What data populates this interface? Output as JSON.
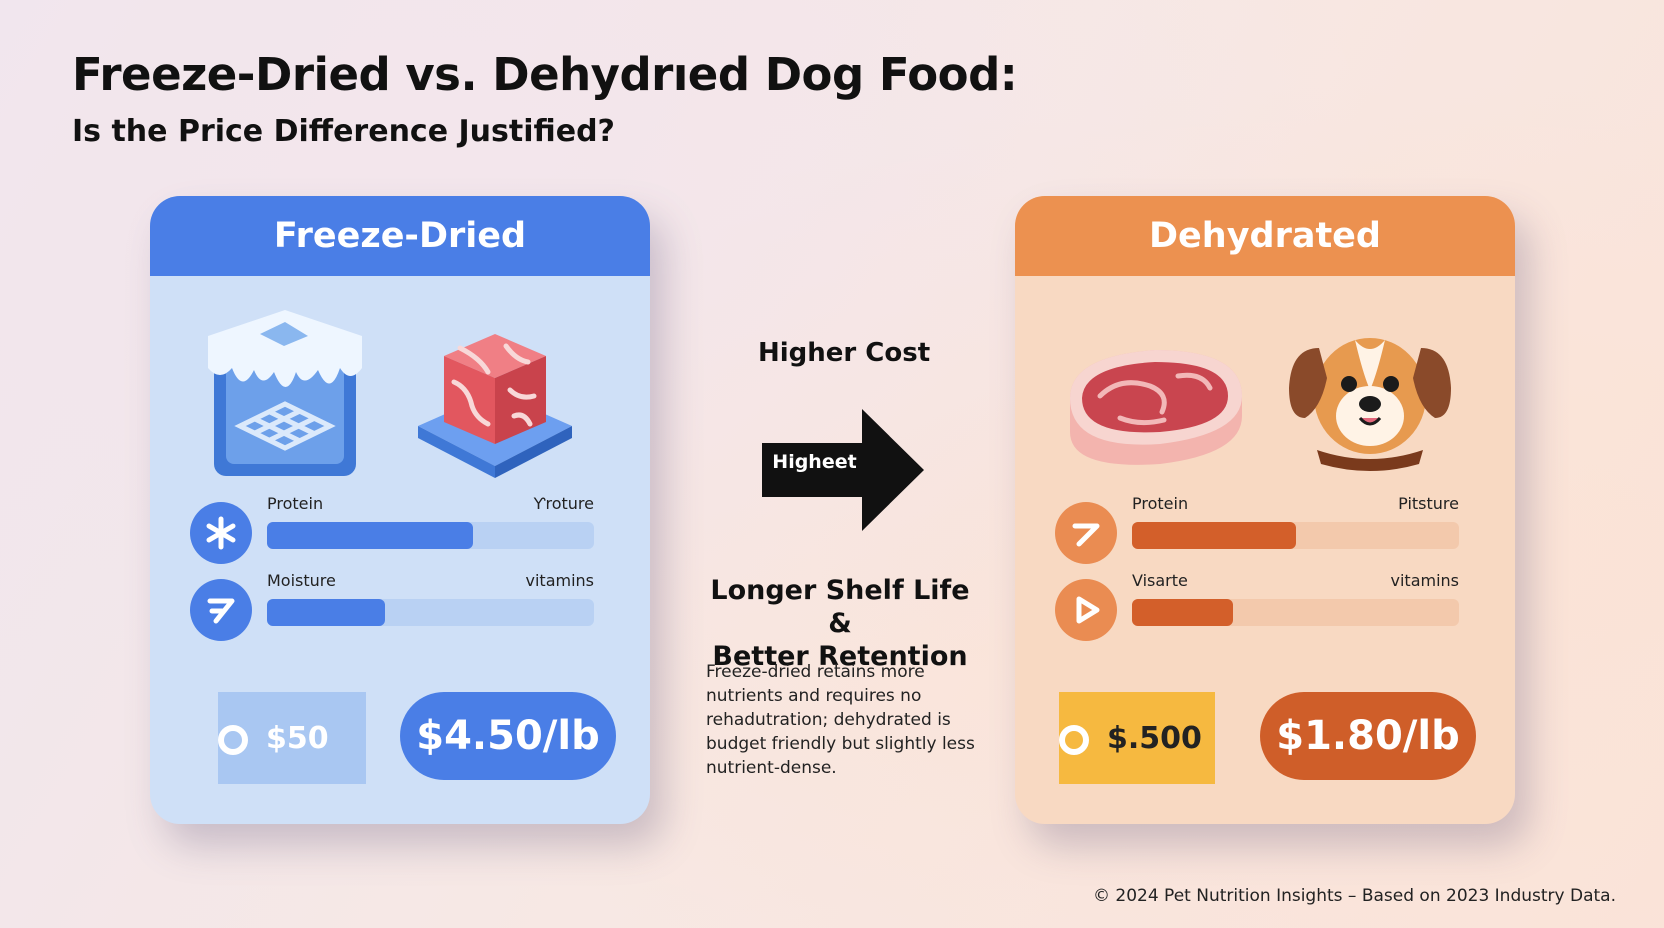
{
  "header": {
    "title": "Freeze-Dried vs. Dehydrıed Dog Food:",
    "subtitle": "Is the Price Difference Justified?"
  },
  "cards": [
    {
      "title": "Freeze-Dried",
      "accent": "#4a7ee6",
      "icons": [
        "frozen-ice-cube-icon",
        "raw-meat-cube-icon"
      ],
      "metrics": [
        {
          "label": "Protein",
          "right_label": "Ƴroture",
          "level_percent": 63,
          "icon": "snowflake-icon"
        },
        {
          "label": "Moisture",
          "right_label": "vitamins",
          "level_percent": 36,
          "icon": "arrow-icon"
        }
      ],
      "stamp_price": "$50",
      "price": "$4.50/lb"
    },
    {
      "title": "Dehydrated",
      "accent": "#ec9150",
      "icons": [
        "steak-icon",
        "dog-face-icon"
      ],
      "metrics": [
        {
          "label": "Protein",
          "right_label": "Pitsture",
          "level_percent": 50,
          "icon": "arrow-icon"
        },
        {
          "label": "Visarte",
          "right_label": "vitamins",
          "level_percent": 31,
          "icon": "play-icon"
        }
      ],
      "stamp_price": "$.500",
      "price": "$1.80/lb"
    }
  ],
  "middle": {
    "cost_label": "Higher Cost",
    "arrow_label": "Higheet",
    "heading_line1": "Longer Shelf Life &",
    "heading_line2": "Better Retention",
    "body": "Freeze-dried retains more nutrients and requires no rehadutration; dehydrated is budget friendly but slightly less nutrient-dense."
  },
  "footer": "© 2024 Pet Nutrition Insights – Based on 2023 Industry Data."
}
